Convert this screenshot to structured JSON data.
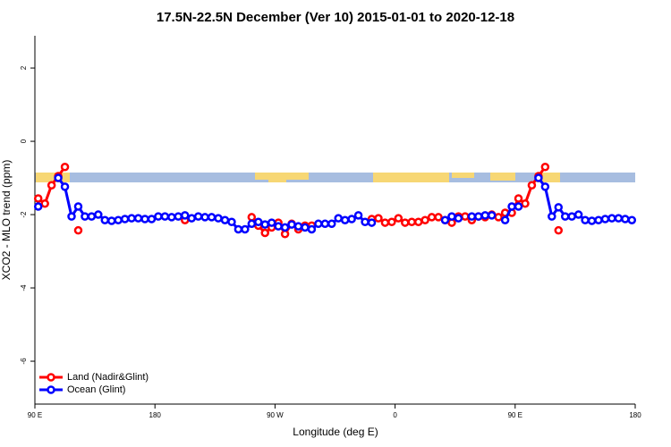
{
  "chart_data": {
    "type": "line",
    "title": "17.5N-22.5N December (Ver 10)   2015-01-01 to 2020-12-18",
    "x_label": "Longitude (deg E)",
    "y_label": "XCO2 - MLO trend (ppm)",
    "xlim": [
      90,
      540
    ],
    "xticks": [
      {
        "value": 90,
        "label": "90 E"
      },
      {
        "value": 180,
        "label": "180"
      },
      {
        "value": 270,
        "label": "90 W"
      },
      {
        "value": 360,
        "label": "0"
      },
      {
        "value": 450,
        "label": "90 E"
      },
      {
        "value": 540,
        "label": "180"
      }
    ],
    "ylim": [
      -7.17,
      2.88
    ],
    "yticks": [
      -6,
      -4,
      -2,
      0,
      2
    ],
    "legend": "bottom-left",
    "x": [
      92.5,
      97.5,
      102.5,
      107.5,
      112.5,
      117.5,
      122.5,
      127.5,
      132.5,
      137.5,
      142.5,
      147.5,
      152.5,
      157.5,
      162.5,
      167.5,
      172.5,
      177.5,
      182.5,
      187.5,
      192.5,
      197.5,
      202.5,
      207.5,
      212.5,
      217.5,
      222.5,
      227.5,
      232.5,
      237.5,
      242.5,
      247.5,
      252.5,
      257.5,
      262.5,
      267.5,
      272.5,
      277.5,
      282.5,
      287.5,
      292.5,
      297.5,
      302.5,
      307.5,
      312.5,
      317.5,
      322.5,
      327.5,
      332.5,
      337.5,
      342.5,
      347.5,
      352.5,
      357.5,
      362.5,
      367.5,
      372.5,
      377.5,
      382.5,
      387.5,
      392.5,
      397.5,
      402.5,
      407.5,
      412.5,
      417.5,
      422.5,
      427.5,
      432.5,
      437.5,
      442.5,
      447.5,
      452.5,
      457.5,
      462.5,
      467.5,
      472.5,
      477.5,
      482.5,
      487.5,
      492.5,
      497.5,
      502.5,
      507.5,
      512.5,
      517.5,
      522.5,
      527.5,
      532.5,
      537.5
    ],
    "series": [
      {
        "name": "Land (Nadir&Glint)",
        "color": "#ff0000",
        "values": [
          -1.56,
          -1.7,
          -1.2,
          -0.95,
          -0.7,
          null,
          -2.43,
          null,
          null,
          null,
          null,
          null,
          null,
          null,
          null,
          null,
          null,
          null,
          null,
          null,
          null,
          null,
          -2.15,
          null,
          null,
          null,
          null,
          null,
          null,
          null,
          null,
          null,
          -2.07,
          -2.3,
          -2.5,
          -2.35,
          -2.22,
          -2.53,
          -2.25,
          -2.4,
          -2.3,
          -2.3,
          null,
          null,
          null,
          null,
          null,
          null,
          null,
          null,
          -2.12,
          -2.1,
          -2.22,
          -2.2,
          -2.1,
          -2.22,
          -2.2,
          -2.2,
          -2.15,
          -2.07,
          -2.07,
          -2.15,
          -2.22,
          -2.05,
          -2.05,
          -2.15,
          -2.05,
          -2.07,
          -2.0,
          -2.07,
          -1.95,
          -1.95,
          -1.56,
          -1.7,
          -1.2,
          -0.95,
          -0.7,
          null,
          -2.43,
          null,
          null,
          null,
          null,
          null,
          null,
          null,
          null,
          null,
          null,
          null
        ]
      },
      {
        "name": "Ocean (Glint)",
        "color": "#0000ff",
        "values": [
          -1.78,
          null,
          null,
          -1.0,
          -1.24,
          -2.05,
          -1.78,
          -2.05,
          -2.05,
          -2.0,
          -2.15,
          -2.17,
          -2.15,
          -2.12,
          -2.1,
          -2.1,
          -2.12,
          -2.12,
          -2.05,
          -2.05,
          -2.07,
          -2.05,
          -2.02,
          -2.1,
          -2.05,
          -2.07,
          -2.07,
          -2.1,
          -2.15,
          -2.2,
          -2.4,
          -2.4,
          -2.25,
          -2.2,
          -2.27,
          -2.22,
          -2.32,
          -2.35,
          -2.27,
          -2.32,
          -2.35,
          -2.4,
          -2.25,
          -2.25,
          -2.25,
          -2.1,
          -2.15,
          -2.12,
          -2.02,
          -2.2,
          -2.22,
          null,
          null,
          null,
          null,
          null,
          null,
          null,
          null,
          null,
          null,
          -2.15,
          -2.05,
          -2.1,
          null,
          -2.05,
          -2.05,
          -2.02,
          -2.02,
          null,
          -2.15,
          -1.78,
          -1.78,
          null,
          null,
          -1.0,
          -1.24,
          -2.05,
          -1.8,
          -2.05,
          -2.05,
          -2.0,
          -2.15,
          -2.17,
          -2.15,
          -2.12,
          -2.1,
          -2.1,
          -2.12,
          -2.15
        ]
      }
    ]
  }
}
